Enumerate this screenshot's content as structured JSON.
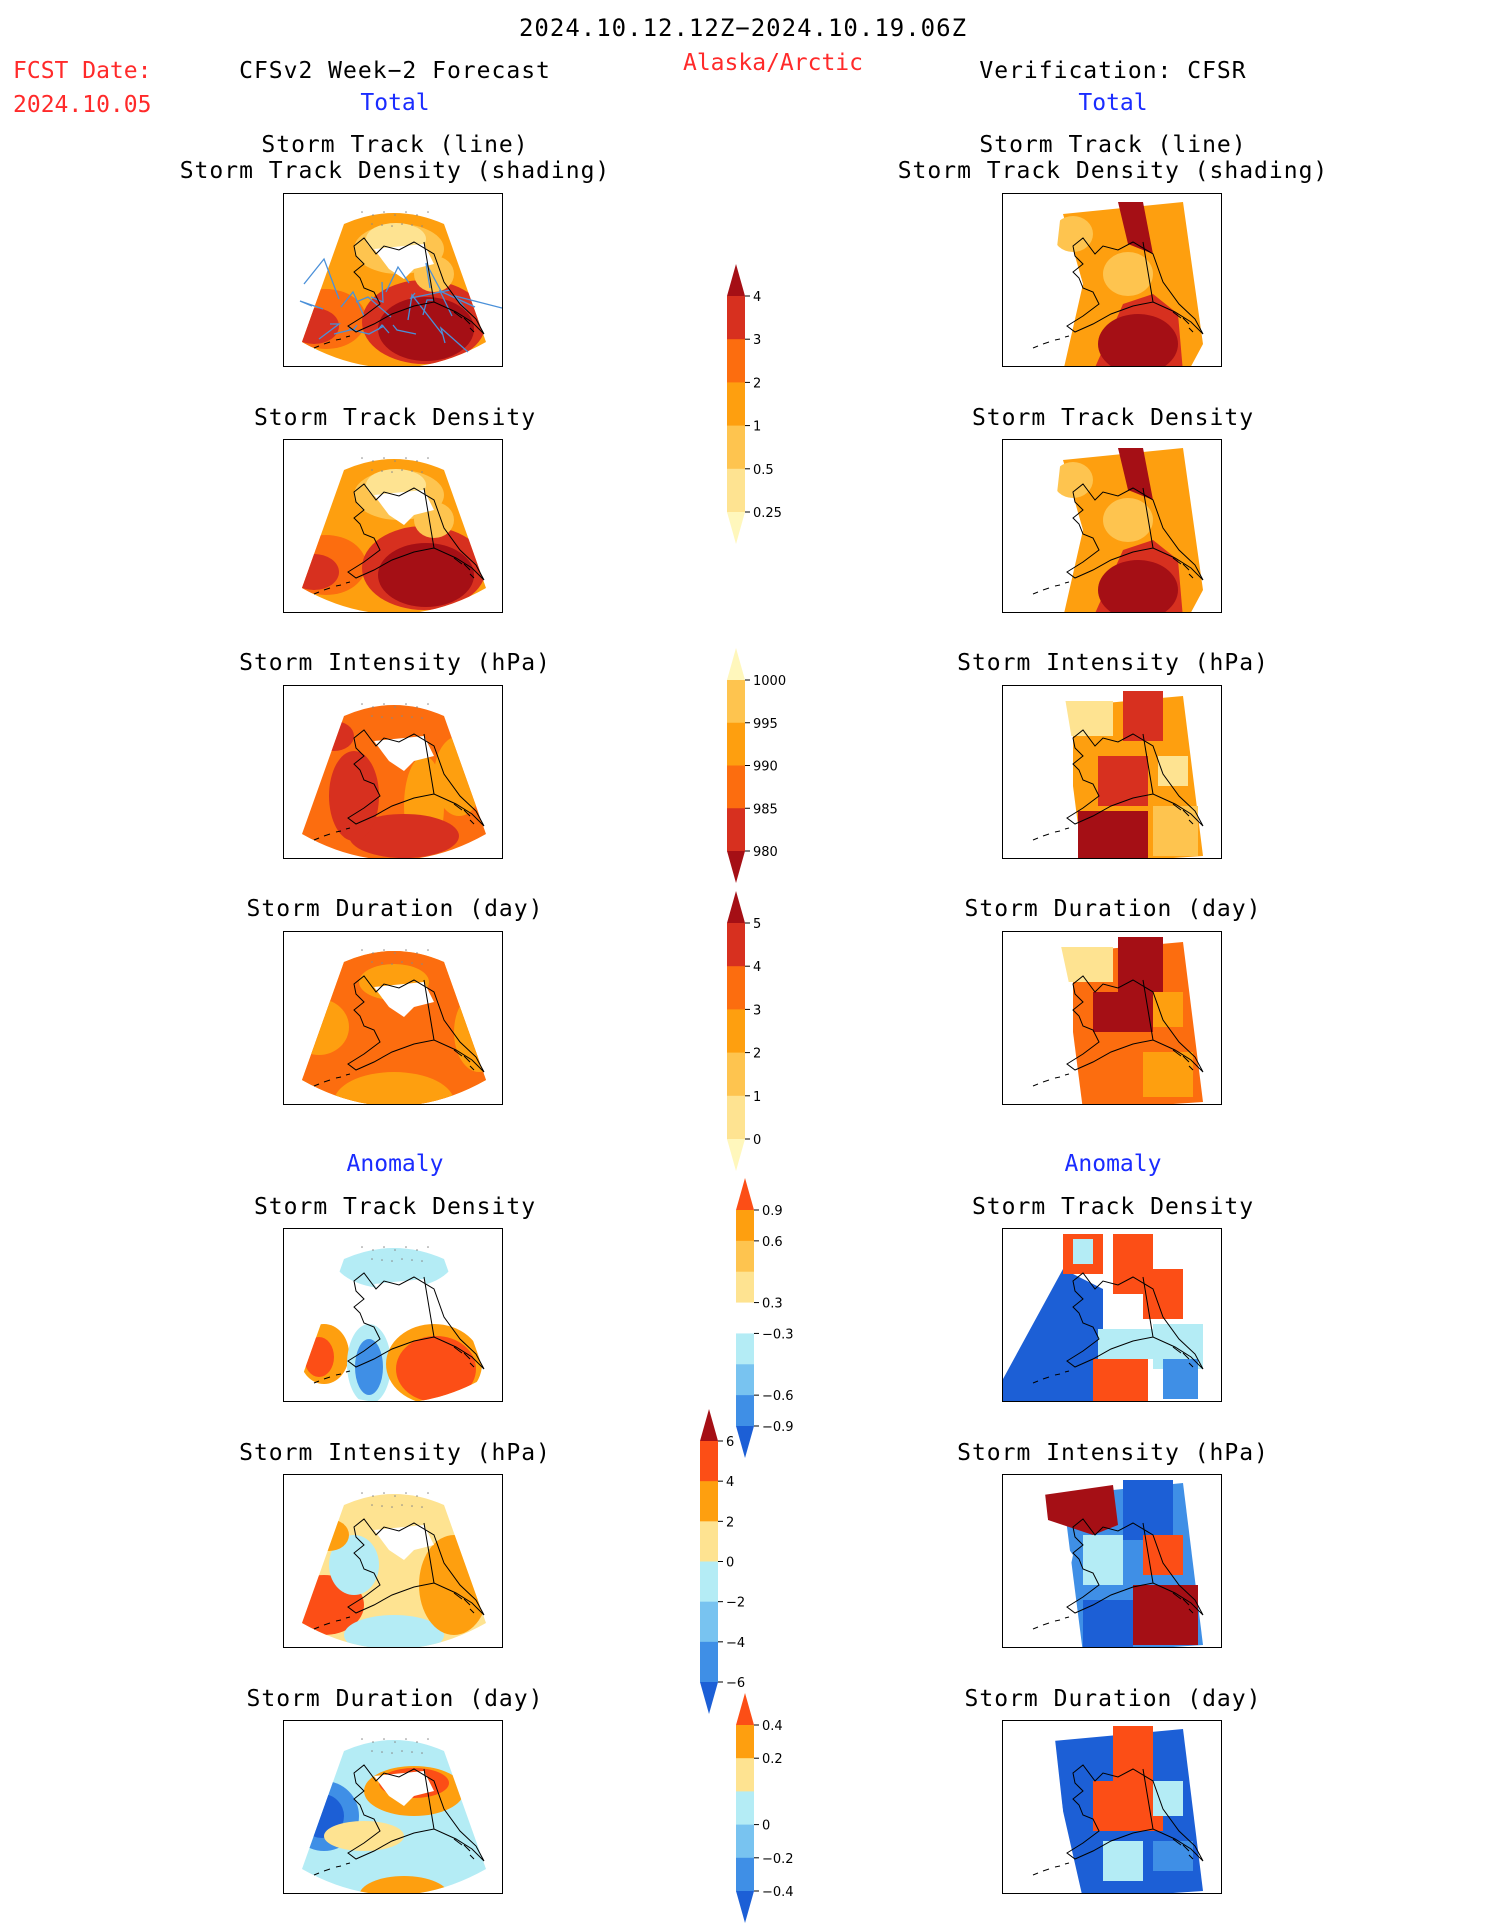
{
  "header": {
    "valid_period": "2024.10.12.12Z−2024.10.19.06Z",
    "fcst_label": "FCST Date:",
    "fcst_date": "2024.10.05",
    "left_title": "CFSv2 Week−2 Forecast",
    "region": "Alaska/Arctic",
    "right_title": "Verification: CFSR",
    "left_total": "Total",
    "right_total": "Total"
  },
  "sections": {
    "anomaly_left": "Anomaly",
    "anomaly_right": "Anomaly"
  },
  "panel_titles": {
    "track_line": "Storm Track (line)",
    "track_shading": "Storm Track Density (shading)",
    "density": "Storm Track Density",
    "intensity": "Storm Intensity (hPa)",
    "duration": "Storm Duration (day)"
  },
  "colorbars": {
    "density_total": {
      "ticks": [
        "4",
        "3",
        "2",
        "1",
        "0.5",
        "0.25"
      ],
      "colors": [
        "#a50f15",
        "#d7301f",
        "#fc6d0f",
        "#fe9f0f",
        "#fec44f",
        "#fee391",
        "#fff7bc"
      ]
    },
    "intensity_total": {
      "ticks": [
        "1000",
        "995",
        "990",
        "985",
        "980"
      ],
      "colors": [
        "#fff7bc",
        "#fec44f",
        "#fe9f0f",
        "#fc6d0f",
        "#d7301f",
        "#a50f15"
      ]
    },
    "duration_total": {
      "ticks": [
        "5",
        "4",
        "3",
        "2",
        "1",
        "0"
      ],
      "colors": [
        "#a50f15",
        "#d7301f",
        "#fc6d0f",
        "#fe9f0f",
        "#fec44f",
        "#fee391",
        "#fff7bc"
      ]
    },
    "density_anom": {
      "ticks": [
        "0.9",
        "0.6",
        "0.3",
        "−0.3",
        "−0.6",
        "−0.9"
      ],
      "colors": [
        "#fc4e16",
        "#fe9f0f",
        "#fec44f",
        "#fee391",
        "#ffffff",
        "#b4ecf5",
        "#78c3f0",
        "#3f8fe6",
        "#1c5fd6"
      ]
    },
    "intensity_anom": {
      "ticks": [
        "6",
        "4",
        "2",
        "0",
        "−2",
        "−4",
        "−6"
      ],
      "colors": [
        "#a50f15",
        "#fc4e16",
        "#fe9f0f",
        "#fee391",
        "#b4ecf5",
        "#78c3f0",
        "#3f8fe6",
        "#1c5fd6"
      ]
    },
    "duration_anom": {
      "ticks": [
        "0.4",
        "0.2",
        "0",
        "−0.2",
        "−0.4"
      ],
      "colors": [
        "#fc4e16",
        "#fe9f0f",
        "#fee391",
        "#b4ecf5",
        "#78c3f0",
        "#3f8fe6",
        "#1c5fd6"
      ]
    }
  },
  "map_colors": {
    "dark_red": "#a50f15",
    "red": "#d7301f",
    "orange_red": "#fc6d0f",
    "orange": "#fe9f0f",
    "light_orange": "#fec44f",
    "pale_yellow": "#fee391",
    "bright_red": "#fc4e16",
    "pale_blue": "#b4ecf5",
    "blue": "#1c5fd6",
    "mid_blue": "#3f8fe6",
    "track_line": "#4a90d9"
  }
}
